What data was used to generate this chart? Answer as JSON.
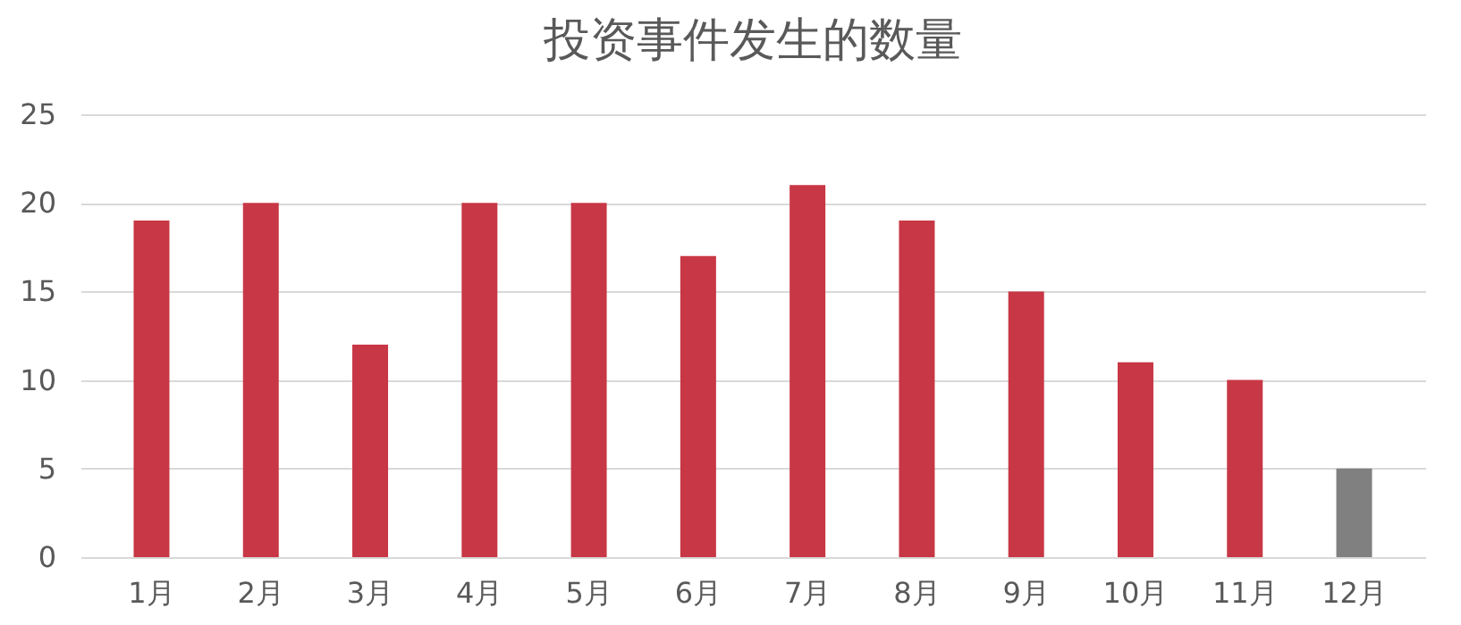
{
  "chart_data": {
    "type": "bar",
    "title": "投资事件发生的数量",
    "categories": [
      "1月",
      "2月",
      "3月",
      "4月",
      "5月",
      "6月",
      "7月",
      "8月",
      "9月",
      "10月",
      "11月",
      "12月"
    ],
    "values": [
      19,
      20,
      12,
      20,
      20,
      17,
      21,
      19,
      15,
      11,
      10,
      5
    ],
    "colors": [
      "#c83745",
      "#c83745",
      "#c83745",
      "#c83745",
      "#c83745",
      "#c83745",
      "#c83745",
      "#c83745",
      "#c83745",
      "#c83745",
      "#c83745",
      "#808080"
    ],
    "ylim": [
      0,
      25
    ],
    "yticks": [
      0,
      5,
      10,
      15,
      20,
      25
    ],
    "grid": "y"
  }
}
